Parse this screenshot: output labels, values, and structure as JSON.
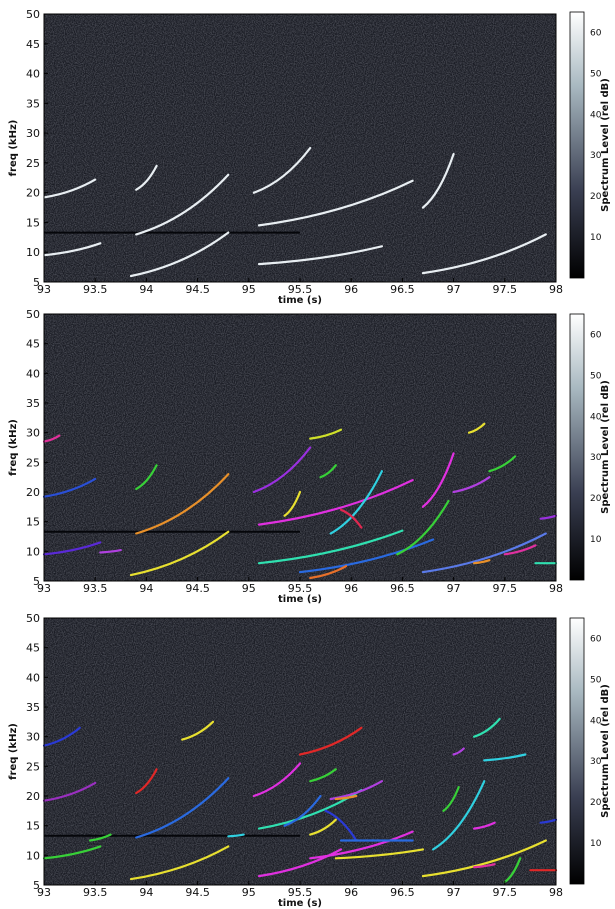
{
  "colorbar": {
    "label": "Spectrum Level (rel dB)",
    "ticks": [
      "10",
      "20",
      "30",
      "40",
      "50",
      "60"
    ],
    "range": [
      0,
      65
    ],
    "colors": [
      "#000000",
      "#3a3f52",
      "#a8b8c0",
      "#ffffff"
    ]
  },
  "chart_data": [
    {
      "type": "heatmap",
      "xlabel": "time (s)",
      "ylabel": "freq (kHz)",
      "xlim": [
        93,
        98
      ],
      "ylim": [
        5,
        50
      ],
      "x_ticks": [
        "93",
        "93.5",
        "94",
        "94.5",
        "95",
        "95.5",
        "96",
        "96.5",
        "97",
        "97.5",
        "98"
      ],
      "y_ticks": [
        "5",
        "10",
        "15",
        "20",
        "25",
        "30",
        "35",
        "40",
        "45",
        "50"
      ],
      "background": "#1a1c24",
      "series": [
        {
          "color": "#e8eef2",
          "x": [
            93.0,
            93.5
          ],
          "y": [
            19.2,
            22.2
          ]
        },
        {
          "color": "#e8eef2",
          "x": [
            93.0,
            93.55
          ],
          "y": [
            9.5,
            11.5
          ]
        },
        {
          "color": "#e8eef2",
          "x": [
            93.9,
            94.1
          ],
          "y": [
            20.5,
            24.5
          ]
        },
        {
          "color": "#e8eef2",
          "x": [
            93.9,
            94.8
          ],
          "y": [
            13.0,
            23.0
          ]
        },
        {
          "color": "#e8eef2",
          "x": [
            93.85,
            94.8
          ],
          "y": [
            6.0,
            13.3
          ]
        },
        {
          "color": "#e8eef2",
          "x": [
            95.05,
            95.6
          ],
          "y": [
            20.0,
            27.5
          ]
        },
        {
          "color": "#e8eef2",
          "x": [
            95.1,
            96.6
          ],
          "y": [
            14.5,
            22.0
          ]
        },
        {
          "color": "#e8eef2",
          "x": [
            95.1,
            96.3
          ],
          "y": [
            8.0,
            11.0
          ]
        },
        {
          "color": "#e8eef2",
          "x": [
            96.7,
            97.0
          ],
          "y": [
            17.5,
            26.5
          ]
        },
        {
          "color": "#e8eef2",
          "x": [
            96.7,
            97.9
          ],
          "y": [
            6.5,
            13.0
          ]
        }
      ]
    },
    {
      "type": "heatmap",
      "xlabel": "time (s)",
      "ylabel": "freq (kHz)",
      "xlim": [
        93,
        98
      ],
      "ylim": [
        5,
        50
      ],
      "x_ticks": [
        "93",
        "93.5",
        "94",
        "94.5",
        "95",
        "95.5",
        "96",
        "96.5",
        "97",
        "97.5",
        "98"
      ],
      "y_ticks": [
        "5",
        "10",
        "15",
        "20",
        "25",
        "30",
        "35",
        "40",
        "45",
        "50"
      ],
      "background": "#1a1c24",
      "series": [
        {
          "color": "#e0309a",
          "x": [
            93.0,
            93.15
          ],
          "y": [
            28.5,
            29.5
          ]
        },
        {
          "color": "#2a4fd6",
          "x": [
            93.0,
            93.5
          ],
          "y": [
            19.2,
            22.2
          ]
        },
        {
          "color": "#5a2ad6",
          "x": [
            93.0,
            93.55
          ],
          "y": [
            9.5,
            11.5
          ]
        },
        {
          "color": "#b040e0",
          "x": [
            93.55,
            93.75
          ],
          "y": [
            9.8,
            10.2
          ]
        },
        {
          "color": "#38d038",
          "x": [
            93.9,
            94.1
          ],
          "y": [
            20.5,
            24.5
          ]
        },
        {
          "color": "#e8902a",
          "x": [
            93.9,
            94.8
          ],
          "y": [
            13.0,
            23.0
          ]
        },
        {
          "color": "#e8e030",
          "x": [
            93.85,
            94.8
          ],
          "y": [
            6.0,
            13.3
          ]
        },
        {
          "color": "#9a30e0",
          "x": [
            95.05,
            95.6
          ],
          "y": [
            20.0,
            27.5
          ]
        },
        {
          "color": "#cfe02a",
          "x": [
            95.6,
            95.9
          ],
          "y": [
            29.0,
            30.5
          ]
        },
        {
          "color": "#38d038",
          "x": [
            95.7,
            95.85
          ],
          "y": [
            22.5,
            24.5
          ]
        },
        {
          "color": "#e030e0",
          "x": [
            95.1,
            96.6
          ],
          "y": [
            14.5,
            22.0
          ]
        },
        {
          "color": "#30d0e0",
          "x": [
            95.8,
            96.3
          ],
          "y": [
            13.0,
            23.5
          ]
        },
        {
          "color": "#e8e030",
          "x": [
            95.35,
            95.5
          ],
          "y": [
            16.0,
            20.0
          ]
        },
        {
          "color": "#e02850",
          "x": [
            95.9,
            96.1
          ],
          "y": [
            17.0,
            14.0
          ]
        },
        {
          "color": "#30e0b0",
          "x": [
            95.1,
            96.5
          ],
          "y": [
            8.0,
            13.5
          ]
        },
        {
          "color": "#2a6ae0",
          "x": [
            95.5,
            96.8
          ],
          "y": [
            6.5,
            12.0
          ]
        },
        {
          "color": "#e8702a",
          "x": [
            95.6,
            95.95
          ],
          "y": [
            5.5,
            7.5
          ]
        },
        {
          "color": "#38d038",
          "x": [
            96.45,
            96.95
          ],
          "y": [
            9.5,
            18.5
          ]
        },
        {
          "color": "#e030e0",
          "x": [
            96.7,
            97.0
          ],
          "y": [
            17.5,
            26.5
          ]
        },
        {
          "color": "#e8e030",
          "x": [
            97.15,
            97.3
          ],
          "y": [
            30.0,
            31.5
          ]
        },
        {
          "color": "#b040e0",
          "x": [
            97.0,
            97.35
          ],
          "y": [
            20.0,
            22.5
          ]
        },
        {
          "color": "#38d038",
          "x": [
            97.35,
            97.6
          ],
          "y": [
            23.5,
            26.0
          ]
        },
        {
          "color": "#5a7ae8",
          "x": [
            96.7,
            97.9
          ],
          "y": [
            6.5,
            13.0
          ]
        },
        {
          "color": "#e030a0",
          "x": [
            97.5,
            97.8
          ],
          "y": [
            9.5,
            11.0
          ]
        },
        {
          "color": "#e8902a",
          "x": [
            97.2,
            97.35
          ],
          "y": [
            8.0,
            8.5
          ]
        },
        {
          "color": "#30e0b0",
          "x": [
            97.8,
            98.0
          ],
          "y": [
            8.0,
            8.0
          ]
        },
        {
          "color": "#9a30e0",
          "x": [
            97.85,
            98.0
          ],
          "y": [
            15.5,
            16.0
          ]
        }
      ]
    },
    {
      "type": "heatmap",
      "xlabel": "time (s)",
      "ylabel": "freq (kHz)",
      "xlim": [
        93,
        98
      ],
      "ylim": [
        5,
        50
      ],
      "x_ticks": [
        "93",
        "93.5",
        "94",
        "94.5",
        "95",
        "95.5",
        "96",
        "96.5",
        "97",
        "97.5",
        "98"
      ],
      "y_ticks": [
        "5",
        "10",
        "15",
        "20",
        "25",
        "30",
        "35",
        "40",
        "45",
        "50"
      ],
      "background": "#1a1c24",
      "series": [
        {
          "color": "#2a3ad6",
          "x": [
            93.0,
            93.35
          ],
          "y": [
            28.5,
            31.5
          ]
        },
        {
          "color": "#9a30c0",
          "x": [
            93.0,
            93.5
          ],
          "y": [
            19.2,
            22.2
          ]
        },
        {
          "color": "#38d038",
          "x": [
            93.0,
            93.55
          ],
          "y": [
            9.5,
            11.5
          ]
        },
        {
          "color": "#38d038",
          "x": [
            93.45,
            93.65
          ],
          "y": [
            12.5,
            13.5
          ]
        },
        {
          "color": "#e8e030",
          "x": [
            94.35,
            94.65
          ],
          "y": [
            29.5,
            32.5
          ]
        },
        {
          "color": "#e02828",
          "x": [
            93.9,
            94.1
          ],
          "y": [
            20.5,
            24.5
          ]
        },
        {
          "color": "#2a6ae0",
          "x": [
            93.9,
            94.8
          ],
          "y": [
            13.0,
            23.0
          ]
        },
        {
          "color": "#e8e030",
          "x": [
            93.85,
            94.8
          ],
          "y": [
            6.0,
            11.5
          ]
        },
        {
          "color": "#30d0e0",
          "x": [
            94.8,
            94.95
          ],
          "y": [
            13.2,
            13.5
          ]
        },
        {
          "color": "#e02828",
          "x": [
            95.5,
            96.1
          ],
          "y": [
            27.0,
            31.5
          ]
        },
        {
          "color": "#e030e0",
          "x": [
            95.05,
            95.5
          ],
          "y": [
            20.0,
            25.5
          ]
        },
        {
          "color": "#38d038",
          "x": [
            95.6,
            95.85
          ],
          "y": [
            22.5,
            24.5
          ]
        },
        {
          "color": "#30e0b0",
          "x": [
            95.1,
            96.1
          ],
          "y": [
            14.5,
            21.0
          ]
        },
        {
          "color": "#b040e0",
          "x": [
            95.8,
            96.3
          ],
          "y": [
            19.5,
            22.5
          ]
        },
        {
          "color": "#2a6ae0",
          "x": [
            95.35,
            95.7
          ],
          "y": [
            15.0,
            20.0
          ]
        },
        {
          "color": "#e8902a",
          "x": [
            95.85,
            96.05
          ],
          "y": [
            19.5,
            20.0
          ]
        },
        {
          "color": "#2a3ad6",
          "x": [
            95.75,
            96.05
          ],
          "y": [
            17.5,
            12.5
          ]
        },
        {
          "color": "#e8e030",
          "x": [
            95.6,
            95.85
          ],
          "y": [
            13.5,
            16.0
          ]
        },
        {
          "color": "#e030e0",
          "x": [
            95.1,
            95.9
          ],
          "y": [
            6.5,
            11.0
          ]
        },
        {
          "color": "#e030e0",
          "x": [
            95.6,
            96.6
          ],
          "y": [
            9.5,
            14.0
          ]
        },
        {
          "color": "#e8e030",
          "x": [
            95.85,
            96.7
          ],
          "y": [
            9.5,
            11.0
          ]
        },
        {
          "color": "#2a6ae0",
          "x": [
            95.9,
            96.6
          ],
          "y": [
            12.5,
            12.5
          ]
        },
        {
          "color": "#38d038",
          "x": [
            96.9,
            97.05
          ],
          "y": [
            17.5,
            21.5
          ]
        },
        {
          "color": "#30d0e0",
          "x": [
            96.8,
            97.3
          ],
          "y": [
            11.0,
            22.5
          ]
        },
        {
          "color": "#30d0e0",
          "x": [
            97.3,
            97.7
          ],
          "y": [
            26.0,
            27.0
          ]
        },
        {
          "color": "#b040e0",
          "x": [
            97.0,
            97.1
          ],
          "y": [
            27.0,
            28.0
          ]
        },
        {
          "color": "#30e0b0",
          "x": [
            97.2,
            97.45
          ],
          "y": [
            30.0,
            33.0
          ]
        },
        {
          "color": "#e030e0",
          "x": [
            97.2,
            97.4
          ],
          "y": [
            14.5,
            15.5
          ]
        },
        {
          "color": "#e8e030",
          "x": [
            96.7,
            97.9
          ],
          "y": [
            6.5,
            12.5
          ]
        },
        {
          "color": "#38d038",
          "x": [
            97.5,
            97.65
          ],
          "y": [
            5.5,
            9.5
          ]
        },
        {
          "color": "#e02828",
          "x": [
            97.75,
            98.0
          ],
          "y": [
            7.5,
            7.5
          ]
        },
        {
          "color": "#2a3ad6",
          "x": [
            97.85,
            98.0
          ],
          "y": [
            15.5,
            16.0
          ]
        },
        {
          "color": "#e030a0",
          "x": [
            97.2,
            97.4
          ],
          "y": [
            8.0,
            8.5
          ]
        }
      ]
    }
  ]
}
